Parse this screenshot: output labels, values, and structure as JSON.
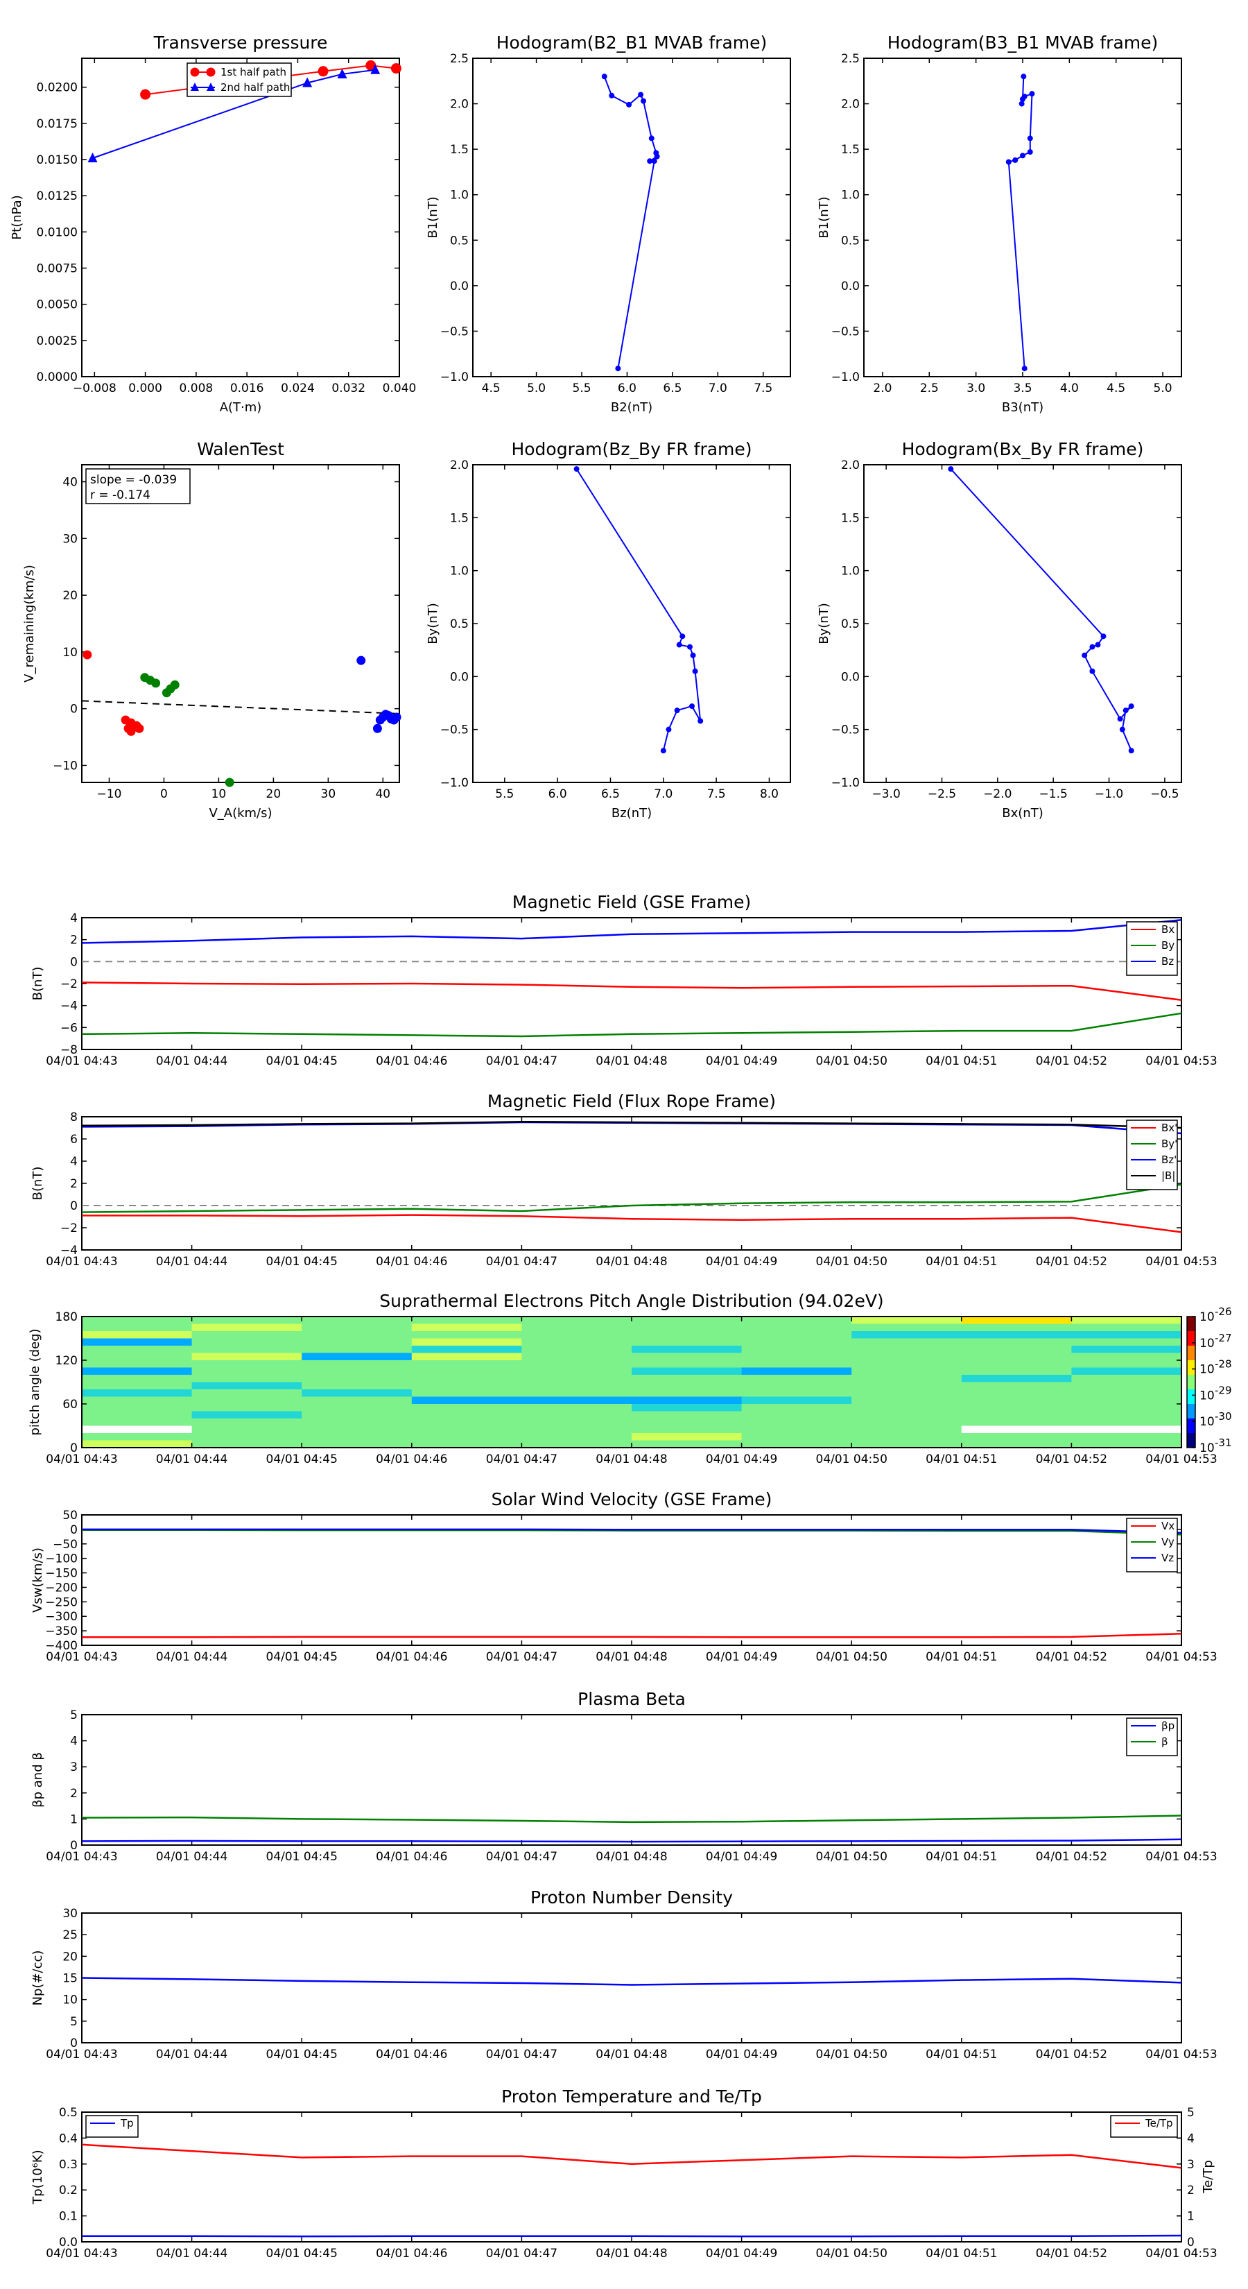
{
  "time_ticks": [
    "04/01 04:43",
    "04/01 04:44",
    "04/01 04:45",
    "04/01 04:46",
    "04/01 04:47",
    "04/01 04:48",
    "04/01 04:49",
    "04/01 04:50",
    "04/01 04:51",
    "04/01 04:52",
    "04/01 04:53"
  ],
  "chart_data": [
    {
      "id": "pt",
      "type": "line",
      "title": "Transverse pressure",
      "xlabel": "A(T·m)",
      "ylabel": "Pt(nPa)",
      "xlim": [
        -0.01,
        0.04
      ],
      "ylim": [
        0,
        0.022
      ],
      "xticks": [
        "−0.008",
        "0.000",
        "0.008",
        "0.016",
        "0.024",
        "0.032",
        "0.040"
      ],
      "yticks": [
        "0.0000",
        "0.0025",
        "0.0050",
        "0.0075",
        "0.0100",
        "0.0125",
        "0.0150",
        "0.0175",
        "0.0200"
      ],
      "legend": "upper-right",
      "series": [
        {
          "name": "1st half path",
          "color": "#ff0000",
          "marker": "circle",
          "x": [
            0.0,
            0.028,
            0.0355,
            0.0395
          ],
          "y": [
            0.0195,
            0.0211,
            0.0215,
            0.0213
          ]
        },
        {
          "name": "2nd half path",
          "color": "#0000ff",
          "marker": "triangle",
          "x": [
            -0.0083,
            0.0255,
            0.031,
            0.0362
          ],
          "y": [
            0.0151,
            0.0203,
            0.0209,
            0.0212
          ]
        }
      ]
    },
    {
      "id": "h1",
      "type": "line",
      "title": "Hodogram(B2_B1 MVAB frame)",
      "xlabel": "B2(nT)",
      "ylabel": "B1(nT)",
      "xlim": [
        4.3,
        7.8
      ],
      "ylim": [
        -1.0,
        2.5
      ],
      "xticks": [
        "4.5",
        "5.0",
        "5.5",
        "6.0",
        "6.5",
        "7.0",
        "7.5"
      ],
      "yticks": [
        "−1.0",
        "−0.5",
        "0.0",
        "0.5",
        "1.0",
        "1.5",
        "2.0",
        "2.5"
      ],
      "series": [
        {
          "name": "",
          "color": "#0000ff",
          "x": [
            5.9,
            6.3,
            6.25,
            6.33,
            6.32,
            6.27,
            6.18,
            6.15,
            6.02,
            5.83,
            5.75
          ],
          "y": [
            -0.91,
            1.37,
            1.37,
            1.42,
            1.46,
            1.62,
            2.03,
            2.1,
            1.99,
            2.09,
            2.3
          ]
        }
      ]
    },
    {
      "id": "h2",
      "type": "line",
      "title": "Hodogram(B3_B1 MVAB frame)",
      "xlabel": "B3(nT)",
      "ylabel": "B1(nT)",
      "xlim": [
        1.8,
        5.2
      ],
      "ylim": [
        -1.0,
        2.5
      ],
      "xticks": [
        "2.0",
        "2.5",
        "3.0",
        "3.5",
        "4.0",
        "4.5",
        "5.0"
      ],
      "yticks": [
        "−1.0",
        "−0.5",
        "0.0",
        "0.5",
        "1.0",
        "1.5",
        "2.0",
        "2.5"
      ],
      "series": [
        {
          "name": "",
          "color": "#0000ff",
          "x": [
            3.52,
            3.35,
            3.42,
            3.5,
            3.58,
            3.58,
            3.6,
            3.52,
            3.49,
            3.5,
            3.51
          ],
          "y": [
            -0.91,
            1.36,
            1.38,
            1.43,
            1.47,
            1.62,
            2.11,
            2.08,
            2.0,
            2.05,
            2.3
          ]
        }
      ]
    },
    {
      "id": "walen",
      "type": "scatter",
      "title": "WalenTest",
      "xlabel": "V_A(km/s)",
      "ylabel": "V_remaining(km/s)",
      "xlim": [
        -15,
        43
      ],
      "ylim": [
        -13,
        43
      ],
      "xticks": [
        "−10",
        "0",
        "10",
        "20",
        "30",
        "40"
      ],
      "yticks": [
        "−10",
        "0",
        "10",
        "20",
        "30",
        "40"
      ],
      "annotations": [
        "slope = -0.039",
        "r = -0.174"
      ],
      "fit_line": {
        "slope": -0.039,
        "intercept": 0.8,
        "color": "#000000",
        "style": "dashed"
      },
      "series": [
        {
          "name": "",
          "color": "#ff0000",
          "points": [
            [
              -14,
              9.5
            ],
            [
              -7,
              -2
            ],
            [
              -6.5,
              -3.5
            ],
            [
              -6,
              -4
            ],
            [
              -5.5,
              -3.2
            ],
            [
              -5,
              -3
            ],
            [
              -4.5,
              -3.5
            ],
            [
              -6,
              -2.5
            ]
          ]
        },
        {
          "name": "",
          "color": "#008000",
          "points": [
            [
              -3.5,
              5.5
            ],
            [
              -2.5,
              5
            ],
            [
              -1.5,
              4.5
            ],
            [
              0.5,
              2.8
            ],
            [
              1.2,
              3.5
            ],
            [
              2,
              4.2
            ],
            [
              12,
              -15
            ]
          ]
        },
        {
          "name": "",
          "color": "#0000ff",
          "points": [
            [
              36,
              8.5
            ],
            [
              39,
              -3.5
            ],
            [
              39.5,
              -2
            ],
            [
              40,
              -1.5
            ],
            [
              40.5,
              -1
            ],
            [
              41,
              -1.2
            ],
            [
              41.5,
              -1.8
            ],
            [
              42,
              -2
            ],
            [
              42.5,
              -1.5
            ]
          ]
        }
      ]
    },
    {
      "id": "h3",
      "type": "line",
      "title": "Hodogram(Bz_By FR frame)",
      "xlabel": "Bz(nT)",
      "ylabel": "By(nT)",
      "xlim": [
        5.2,
        8.2
      ],
      "ylim": [
        -1.0,
        2.0
      ],
      "xticks": [
        "5.5",
        "6.0",
        "6.5",
        "7.0",
        "7.5",
        "8.0"
      ],
      "yticks": [
        "−1.0",
        "−0.5",
        "0.0",
        "0.5",
        "1.0",
        "1.5",
        "2.0"
      ],
      "series": [
        {
          "name": "",
          "color": "#0000ff",
          "x": [
            6.18,
            7.18,
            7.15,
            7.25,
            7.28,
            7.3,
            7.35,
            7.27,
            7.13,
            7.05,
            7.0
          ],
          "y": [
            1.96,
            0.38,
            0.3,
            0.28,
            0.2,
            0.05,
            -0.42,
            -0.28,
            -0.32,
            -0.5,
            -0.7
          ]
        }
      ]
    },
    {
      "id": "h4",
      "type": "line",
      "title": "Hodogram(Bx_By FR frame)",
      "xlabel": "Bx(nT)",
      "ylabel": "By(nT)",
      "xlim": [
        -3.2,
        -0.35
      ],
      "ylim": [
        -1.0,
        2.0
      ],
      "xticks": [
        "−3.0",
        "−2.5",
        "−2.0",
        "−1.5",
        "−1.0",
        "−0.5"
      ],
      "yticks": [
        "−1.0",
        "−0.5",
        "0.0",
        "0.5",
        "1.0",
        "1.5",
        "2.0"
      ],
      "series": [
        {
          "name": "",
          "color": "#0000ff",
          "x": [
            -2.42,
            -1.05,
            -1.1,
            -1.15,
            -1.22,
            -1.15,
            -0.9,
            -0.8,
            -0.85,
            -0.88,
            -0.8
          ],
          "y": [
            1.96,
            0.38,
            0.3,
            0.28,
            0.2,
            0.05,
            -0.4,
            -0.28,
            -0.32,
            -0.5,
            -0.7
          ]
        }
      ]
    },
    {
      "id": "mag_gse",
      "type": "line",
      "title": "Magnetic Field (GSE Frame)",
      "ylabel": "B(nT)",
      "ylim": [
        -8,
        4
      ],
      "yticks": [
        "−8",
        "−6",
        "−4",
        "−2",
        "0",
        "2",
        "4"
      ],
      "zero_line": true,
      "legend": "upper-right",
      "x": [
        0,
        1,
        2,
        3,
        4,
        5,
        6,
        7,
        8,
        9,
        10
      ],
      "series": [
        {
          "name": "Bx",
          "color": "#ff0000",
          "values": [
            -1.9,
            -2.0,
            -2.05,
            -2.0,
            -2.1,
            -2.3,
            -2.4,
            -2.3,
            -2.25,
            -2.2,
            -3.5
          ]
        },
        {
          "name": "By",
          "color": "#008000",
          "values": [
            -6.6,
            -6.5,
            -6.6,
            -6.7,
            -6.8,
            -6.6,
            -6.5,
            -6.4,
            -6.3,
            -6.3,
            -4.7
          ]
        },
        {
          "name": "Bz",
          "color": "#0000ff",
          "values": [
            1.7,
            1.9,
            2.2,
            2.3,
            2.1,
            2.5,
            2.6,
            2.7,
            2.7,
            2.8,
            3.8
          ]
        }
      ]
    },
    {
      "id": "mag_fr",
      "type": "line",
      "title": "Magnetic Field (Flux Rope Frame)",
      "ylabel": "B(nT)",
      "ylim": [
        -4,
        8
      ],
      "yticks": [
        "−4",
        "−2",
        "0",
        "2",
        "4",
        "6",
        "8"
      ],
      "zero_line": true,
      "legend": "upper-right",
      "x": [
        0,
        1,
        2,
        3,
        4,
        5,
        6,
        7,
        8,
        9,
        10
      ],
      "series": [
        {
          "name": "Bx'",
          "color": "#ff0000",
          "values": [
            -0.9,
            -0.9,
            -0.95,
            -0.85,
            -0.95,
            -1.2,
            -1.3,
            -1.2,
            -1.2,
            -1.1,
            -2.4
          ]
        },
        {
          "name": "By'",
          "color": "#008000",
          "values": [
            -0.6,
            -0.5,
            -0.4,
            -0.3,
            -0.5,
            0.0,
            0.2,
            0.3,
            0.3,
            0.35,
            1.9
          ]
        },
        {
          "name": "Bz'",
          "color": "#0000ff",
          "values": [
            7.1,
            7.15,
            7.3,
            7.35,
            7.5,
            7.45,
            7.4,
            7.35,
            7.3,
            7.25,
            6.5
          ]
        },
        {
          "name": "|B|",
          "color": "#000000",
          "values": [
            7.2,
            7.25,
            7.35,
            7.4,
            7.55,
            7.5,
            7.45,
            7.4,
            7.35,
            7.3,
            7.0
          ]
        }
      ]
    },
    {
      "id": "pad",
      "type": "heatmap",
      "title": "Suprathermal Electrons Pitch Angle Distribution (94.02eV)",
      "ylabel": "pitch angle (deg)",
      "ylim": [
        0,
        180
      ],
      "yticks": [
        "0",
        "60",
        "120",
        "180"
      ],
      "colorbar_ticks": [
        "-26",
        "-27",
        "-28",
        "-29",
        "-30",
        "-31"
      ],
      "colorbar_base": "10",
      "levels": [
        [
          3,
          3,
          3,
          3,
          3,
          3,
          3,
          4,
          5,
          4
        ],
        [
          3,
          4,
          3,
          4,
          3,
          3,
          3,
          3,
          3,
          3
        ],
        [
          4,
          3,
          3,
          3,
          3,
          3,
          3,
          2,
          2,
          2
        ],
        [
          1,
          3,
          3,
          4,
          3,
          3,
          3,
          3,
          3,
          3
        ],
        [
          3,
          3,
          3,
          2,
          3,
          2,
          3,
          3,
          3,
          2
        ],
        [
          3,
          4,
          1,
          4,
          3,
          3,
          3,
          3,
          3,
          3
        ],
        [
          3,
          3,
          3,
          3,
          3,
          3,
          3,
          3,
          3,
          3
        ],
        [
          1,
          3,
          3,
          3,
          3,
          2,
          1,
          3,
          3,
          2
        ],
        [
          3,
          3,
          3,
          3,
          3,
          3,
          3,
          3,
          2,
          3
        ],
        [
          3,
          2,
          3,
          3,
          3,
          3,
          3,
          3,
          3,
          3
        ],
        [
          2,
          3,
          2,
          3,
          3,
          3,
          3,
          3,
          3,
          3
        ],
        [
          3,
          3,
          3,
          1,
          1,
          1,
          2,
          3,
          3,
          3
        ],
        [
          3,
          3,
          3,
          3,
          3,
          2,
          3,
          3,
          3,
          3
        ],
        [
          3,
          2,
          3,
          3,
          3,
          3,
          3,
          3,
          3,
          3
        ],
        [
          3,
          3,
          3,
          3,
          3,
          3,
          3,
          3,
          3,
          3
        ],
        [
          0,
          3,
          3,
          3,
          3,
          3,
          3,
          3,
          0,
          0
        ],
        [
          3,
          3,
          3,
          3,
          3,
          4,
          3,
          3,
          3,
          3
        ],
        [
          4,
          3,
          3,
          3,
          3,
          3,
          3,
          3,
          3,
          3
        ]
      ]
    },
    {
      "id": "vsw",
      "type": "line",
      "title": "Solar Wind Velocity (GSE Frame)",
      "ylabel": "Vsw(km/s)",
      "ylim": [
        -400,
        50
      ],
      "yticks": [
        "−400",
        "−350",
        "−300",
        "−250",
        "−200",
        "−150",
        "−100",
        "−50",
        "0",
        "50"
      ],
      "legend": "upper-right",
      "x": [
        0,
        1,
        2,
        3,
        4,
        5,
        6,
        7,
        8,
        9,
        10
      ],
      "series": [
        {
          "name": "Vx",
          "color": "#ff0000",
          "values": [
            -372,
            -372,
            -371,
            -371,
            -371,
            -371,
            -372,
            -372,
            -372,
            -371,
            -360
          ]
        },
        {
          "name": "Vy",
          "color": "#008000",
          "values": [
            -2,
            -2,
            -3,
            -3,
            -3,
            -4,
            -4,
            -4,
            -5,
            -5,
            -18
          ]
        },
        {
          "name": "Vz",
          "color": "#0000ff",
          "values": [
            0,
            0,
            0,
            0,
            0,
            -1,
            -1,
            -1,
            -1,
            -1,
            -12
          ]
        }
      ]
    },
    {
      "id": "beta",
      "type": "line",
      "title": "Plasma Beta",
      "ylabel": "βp and β",
      "ylim": [
        0,
        5
      ],
      "yticks": [
        "0",
        "1",
        "2",
        "3",
        "4",
        "5"
      ],
      "legend": "upper-right",
      "x": [
        0,
        1,
        2,
        3,
        4,
        5,
        6,
        7,
        8,
        9,
        10
      ],
      "series": [
        {
          "name": "βp",
          "color": "#0000ff",
          "values": [
            0.15,
            0.16,
            0.15,
            0.15,
            0.14,
            0.13,
            0.14,
            0.15,
            0.16,
            0.17,
            0.22
          ]
        },
        {
          "name": "β",
          "color": "#008000",
          "values": [
            1.05,
            1.06,
            1.0,
            0.97,
            0.93,
            0.88,
            0.9,
            0.95,
            1.0,
            1.05,
            1.13
          ]
        }
      ]
    },
    {
      "id": "np",
      "type": "line",
      "title": "Proton Number Density",
      "ylabel": "Np(#/cc)",
      "ylim": [
        0,
        30
      ],
      "yticks": [
        "0",
        "5",
        "10",
        "15",
        "20",
        "25",
        "30"
      ],
      "x": [
        0,
        1,
        2,
        3,
        4,
        5,
        6,
        7,
        8,
        9,
        10
      ],
      "series": [
        {
          "name": "",
          "color": "#0000ff",
          "values": [
            15.0,
            14.7,
            14.3,
            14.0,
            13.8,
            13.4,
            13.7,
            14.0,
            14.5,
            14.8,
            13.9
          ]
        }
      ]
    },
    {
      "id": "temp",
      "type": "line",
      "title": "Proton Temperature and Te/Tp",
      "ylabel": "Tp(10⁶K)",
      "ylabel_right": "Te/Tp",
      "ylim": [
        0,
        0.5
      ],
      "ylim_right": [
        0,
        5
      ],
      "yticks": [
        "0.0",
        "0.1",
        "0.2",
        "0.3",
        "0.4",
        "0.5"
      ],
      "yticks_right": [
        "0",
        "1",
        "2",
        "3",
        "4",
        "5"
      ],
      "x": [
        0,
        1,
        2,
        3,
        4,
        5,
        6,
        7,
        8,
        9,
        10
      ],
      "series": [
        {
          "name": "Tp",
          "color": "#0000ff",
          "axis": "left",
          "legend": "upper-left",
          "values": [
            0.022,
            0.022,
            0.021,
            0.022,
            0.022,
            0.022,
            0.021,
            0.021,
            0.022,
            0.022,
            0.024
          ]
        },
        {
          "name": "Te/Tp",
          "color": "#ff0000",
          "axis": "right",
          "legend": "upper-right",
          "values": [
            3.75,
            3.5,
            3.25,
            3.3,
            3.3,
            3.0,
            3.15,
            3.3,
            3.25,
            3.35,
            2.85
          ]
        }
      ]
    }
  ]
}
